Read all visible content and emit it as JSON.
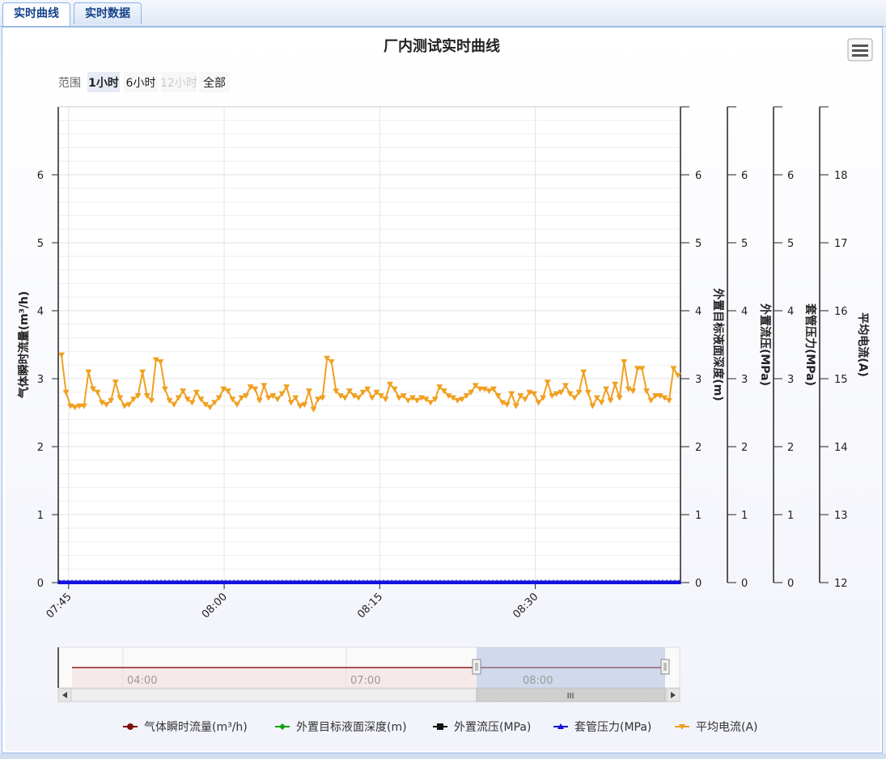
{
  "tabs": [
    {
      "label": "实时曲线",
      "active": true
    },
    {
      "label": "实时数据",
      "active": false
    }
  ],
  "chart_title": "厂内测试实时曲线",
  "range_selector": {
    "label": "范围",
    "buttons": [
      {
        "label": "1小时",
        "state": "selected"
      },
      {
        "label": "6小时",
        "state": "normal"
      },
      {
        "label": "12小时",
        "state": "disabled"
      },
      {
        "label": "全部",
        "state": "normal"
      }
    ]
  },
  "menu_icon": "hamburger-menu-icon",
  "chart_data": {
    "type": "line",
    "title": "厂内测试实时曲线",
    "x_axis": {
      "range": [
        "07:44",
        "08:44"
      ],
      "ticks": [
        "07:45",
        "08:00",
        "08:15",
        "08:30"
      ]
    },
    "y_axes": [
      {
        "name": "气体瞬时流量(m³/h)",
        "side": "left",
        "range": [
          0,
          7
        ],
        "ticks": [
          "0",
          "1",
          "2",
          "3",
          "4",
          "5",
          "6"
        ]
      },
      {
        "name": "外置目标液面深度(m)",
        "side": "right",
        "range": [
          0,
          7
        ],
        "ticks": [
          "0",
          "1",
          "2",
          "3",
          "4",
          "5",
          "6"
        ]
      },
      {
        "name": "外置流压(MPa)",
        "side": "right",
        "range": [
          0,
          7
        ],
        "ticks": [
          "0",
          "1",
          "2",
          "3",
          "4",
          "5",
          "6"
        ]
      },
      {
        "name": "套管压力(MPa)",
        "side": "right",
        "range": [
          0,
          7
        ],
        "ticks": [
          "0",
          "1",
          "2",
          "3",
          "4",
          "5",
          "6"
        ]
      },
      {
        "name": "平均电流(A)",
        "side": "right",
        "range": [
          12,
          19
        ],
        "ticks": [
          "12",
          "13",
          "14",
          "15",
          "16",
          "17",
          "18"
        ]
      }
    ],
    "series": [
      {
        "name": "气体瞬时流量(m³/h)",
        "color": "#7f1010",
        "marker": "circle",
        "value": 0
      },
      {
        "name": "外置目标液面深度(m)",
        "color": "#10a010",
        "marker": "diamond",
        "value": 0
      },
      {
        "name": "外置流压(MPa)",
        "color": "#111111",
        "marker": "square",
        "value": 0
      },
      {
        "name": "套管压力(MPa)",
        "color": "#1010e0",
        "marker": "triangle",
        "value": 0
      },
      {
        "name": "平均电流(A)",
        "color": "#f0a020",
        "marker": "triangle-down",
        "axis": 4,
        "values": [
          15.35,
          14.8,
          14.6,
          14.58,
          14.6,
          14.6,
          15.1,
          14.85,
          14.8,
          14.65,
          14.62,
          14.68,
          14.95,
          14.72,
          14.6,
          14.62,
          14.7,
          14.75,
          15.1,
          14.75,
          14.68,
          15.28,
          15.25,
          14.85,
          14.68,
          14.62,
          14.72,
          14.82,
          14.7,
          14.65,
          14.8,
          14.7,
          14.62,
          14.58,
          14.65,
          14.72,
          14.85,
          14.82,
          14.7,
          14.62,
          14.72,
          14.75,
          14.88,
          14.85,
          14.68,
          14.9,
          14.72,
          14.75,
          14.7,
          14.78,
          14.88,
          14.65,
          14.72,
          14.6,
          14.62,
          14.82,
          14.55,
          14.7,
          14.72,
          15.3,
          15.25,
          14.82,
          14.75,
          14.72,
          14.82,
          14.75,
          14.72,
          14.8,
          14.85,
          14.72,
          14.8,
          14.75,
          14.7,
          14.92,
          14.85,
          14.72,
          14.75,
          14.68,
          14.72,
          14.68,
          14.72,
          14.7,
          14.65,
          14.7,
          14.88,
          14.82,
          14.75,
          14.72,
          14.68,
          14.7,
          14.75,
          14.8,
          14.9,
          14.85,
          14.85,
          14.82,
          14.85,
          14.75,
          14.65,
          14.62,
          14.78,
          14.6,
          14.75,
          14.7,
          14.8,
          14.78,
          14.65,
          14.72,
          14.95,
          14.75,
          14.78,
          14.8,
          14.9,
          14.78,
          14.72,
          14.8,
          15.1,
          14.8,
          14.6,
          14.72,
          14.65,
          14.85,
          14.68,
          14.92,
          14.72,
          15.25,
          14.85,
          14.82,
          15.15,
          15.15,
          14.82,
          14.68,
          14.75,
          14.75,
          14.72,
          14.68,
          15.15,
          15.05
        ]
      }
    ],
    "navigator": {
      "ticks": [
        "04:00",
        "07:00",
        "08:00"
      ],
      "scroll_grip": "III"
    },
    "legend_position": "bottom",
    "grid": true
  }
}
